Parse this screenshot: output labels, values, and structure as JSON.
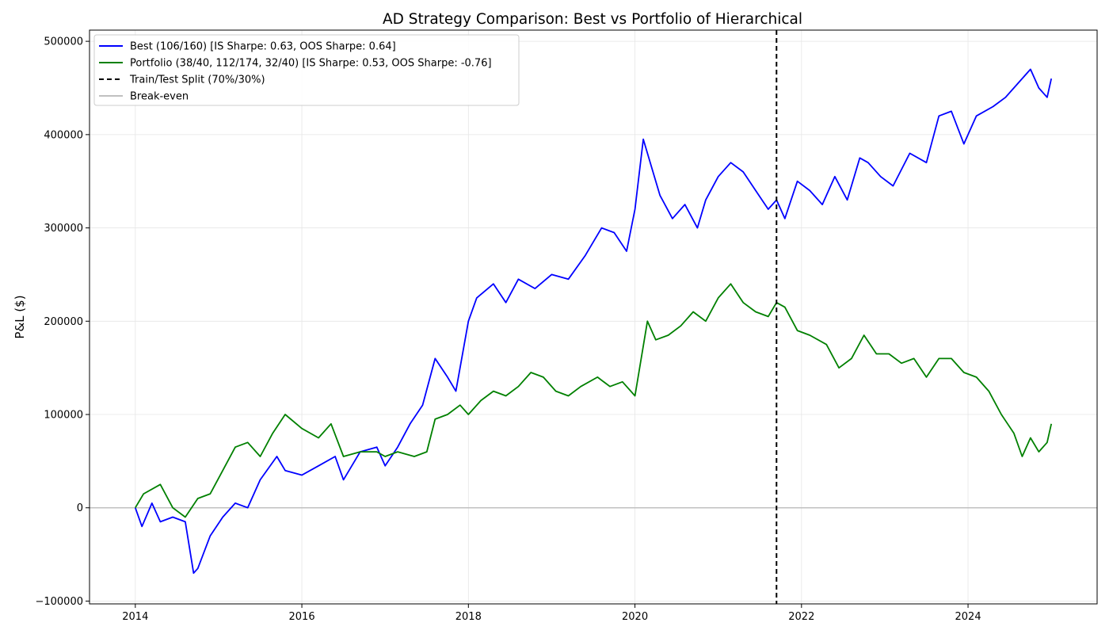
{
  "chart_data": {
    "type": "line",
    "title": "AD Strategy Comparison: Best vs Portfolio of Hierarchical",
    "xlabel": "",
    "ylabel": "P&L ($)",
    "xlim": [
      2013.45,
      2025.55
    ],
    "ylim": [
      -103000,
      512000
    ],
    "x_ticks": [
      2014,
      2016,
      2018,
      2020,
      2022,
      2024
    ],
    "x_tick_labels": [
      "2014",
      "2016",
      "2018",
      "2020",
      "2022",
      "2024"
    ],
    "y_ticks": [
      -100000,
      0,
      100000,
      200000,
      300000,
      400000,
      500000
    ],
    "y_tick_labels": [
      "−100000",
      "0",
      "100000",
      "200000",
      "300000",
      "400000",
      "500000"
    ],
    "grid": true,
    "legend_position": "upper-left",
    "split_x": 2021.7,
    "series": [
      {
        "name": "Best (106/160) [IS Sharpe: 0.63, OOS Sharpe: 0.64]",
        "color": "#0000ff",
        "x": [
          2014.0,
          2014.08,
          2014.2,
          2014.3,
          2014.45,
          2014.6,
          2014.7,
          2014.75,
          2014.9,
          2015.05,
          2015.2,
          2015.35,
          2015.5,
          2015.7,
          2015.8,
          2016.0,
          2016.2,
          2016.4,
          2016.5,
          2016.7,
          2016.9,
          2017.0,
          2017.15,
          2017.3,
          2017.45,
          2017.6,
          2017.75,
          2017.85,
          2018.0,
          2018.1,
          2018.3,
          2018.45,
          2018.6,
          2018.8,
          2019.0,
          2019.2,
          2019.4,
          2019.6,
          2019.75,
          2019.9,
          2020.0,
          2020.1,
          2020.2,
          2020.3,
          2020.45,
          2020.6,
          2020.75,
          2020.85,
          2021.0,
          2021.15,
          2021.3,
          2021.45,
          2021.6,
          2021.7,
          2021.8,
          2021.95,
          2022.1,
          2022.25,
          2022.4,
          2022.55,
          2022.7,
          2022.8,
          2022.95,
          2023.1,
          2023.3,
          2023.5,
          2023.65,
          2023.8,
          2023.95,
          2024.1,
          2024.3,
          2024.45,
          2024.6,
          2024.75,
          2024.85,
          2024.95,
          2025.0
        ],
        "values": [
          0,
          -20000,
          5000,
          -15000,
          -10000,
          -15000,
          -70000,
          -65000,
          -30000,
          -10000,
          5000,
          0,
          30000,
          55000,
          40000,
          35000,
          45000,
          55000,
          30000,
          60000,
          65000,
          45000,
          65000,
          90000,
          110000,
          160000,
          140000,
          125000,
          200000,
          225000,
          240000,
          220000,
          245000,
          235000,
          250000,
          245000,
          270000,
          300000,
          295000,
          275000,
          320000,
          395000,
          365000,
          335000,
          310000,
          325000,
          300000,
          330000,
          355000,
          370000,
          360000,
          340000,
          320000,
          330000,
          310000,
          350000,
          340000,
          325000,
          355000,
          330000,
          375000,
          370000,
          355000,
          345000,
          380000,
          370000,
          420000,
          425000,
          390000,
          420000,
          430000,
          440000,
          455000,
          470000,
          450000,
          440000,
          460000
        ]
      },
      {
        "name": "Portfolio (38/40, 112/174, 32/40) [IS Sharpe: 0.53, OOS Sharpe: -0.76]",
        "color": "#008000",
        "x": [
          2014.0,
          2014.1,
          2014.3,
          2014.45,
          2014.6,
          2014.75,
          2014.9,
          2015.05,
          2015.2,
          2015.35,
          2015.5,
          2015.65,
          2015.8,
          2016.0,
          2016.2,
          2016.35,
          2016.5,
          2016.7,
          2016.9,
          2017.0,
          2017.15,
          2017.35,
          2017.5,
          2017.6,
          2017.75,
          2017.9,
          2018.0,
          2018.15,
          2018.3,
          2018.45,
          2018.6,
          2018.75,
          2018.9,
          2019.05,
          2019.2,
          2019.35,
          2019.55,
          2019.7,
          2019.85,
          2020.0,
          2020.15,
          2020.25,
          2020.4,
          2020.55,
          2020.7,
          2020.85,
          2021.0,
          2021.15,
          2021.3,
          2021.45,
          2021.6,
          2021.7,
          2021.8,
          2021.95,
          2022.1,
          2022.3,
          2022.45,
          2022.6,
          2022.75,
          2022.9,
          2023.05,
          2023.2,
          2023.35,
          2023.5,
          2023.65,
          2023.8,
          2023.95,
          2024.1,
          2024.25,
          2024.4,
          2024.55,
          2024.65,
          2024.75,
          2024.85,
          2024.95,
          2025.0
        ],
        "values": [
          0,
          15000,
          25000,
          0,
          -10000,
          10000,
          15000,
          40000,
          65000,
          70000,
          55000,
          80000,
          100000,
          85000,
          75000,
          90000,
          55000,
          60000,
          60000,
          55000,
          60000,
          55000,
          60000,
          95000,
          100000,
          110000,
          100000,
          115000,
          125000,
          120000,
          130000,
          145000,
          140000,
          125000,
          120000,
          130000,
          140000,
          130000,
          135000,
          120000,
          200000,
          180000,
          185000,
          195000,
          210000,
          200000,
          225000,
          240000,
          220000,
          210000,
          205000,
          220000,
          215000,
          190000,
          185000,
          175000,
          150000,
          160000,
          185000,
          165000,
          165000,
          155000,
          160000,
          140000,
          160000,
          160000,
          145000,
          140000,
          125000,
          100000,
          80000,
          55000,
          75000,
          60000,
          70000,
          90000
        ]
      },
      {
        "name": "Train/Test Split (70%/30%)",
        "color": "#000000"
      },
      {
        "name": "Break-even",
        "color": "#c0c0c0"
      }
    ]
  }
}
